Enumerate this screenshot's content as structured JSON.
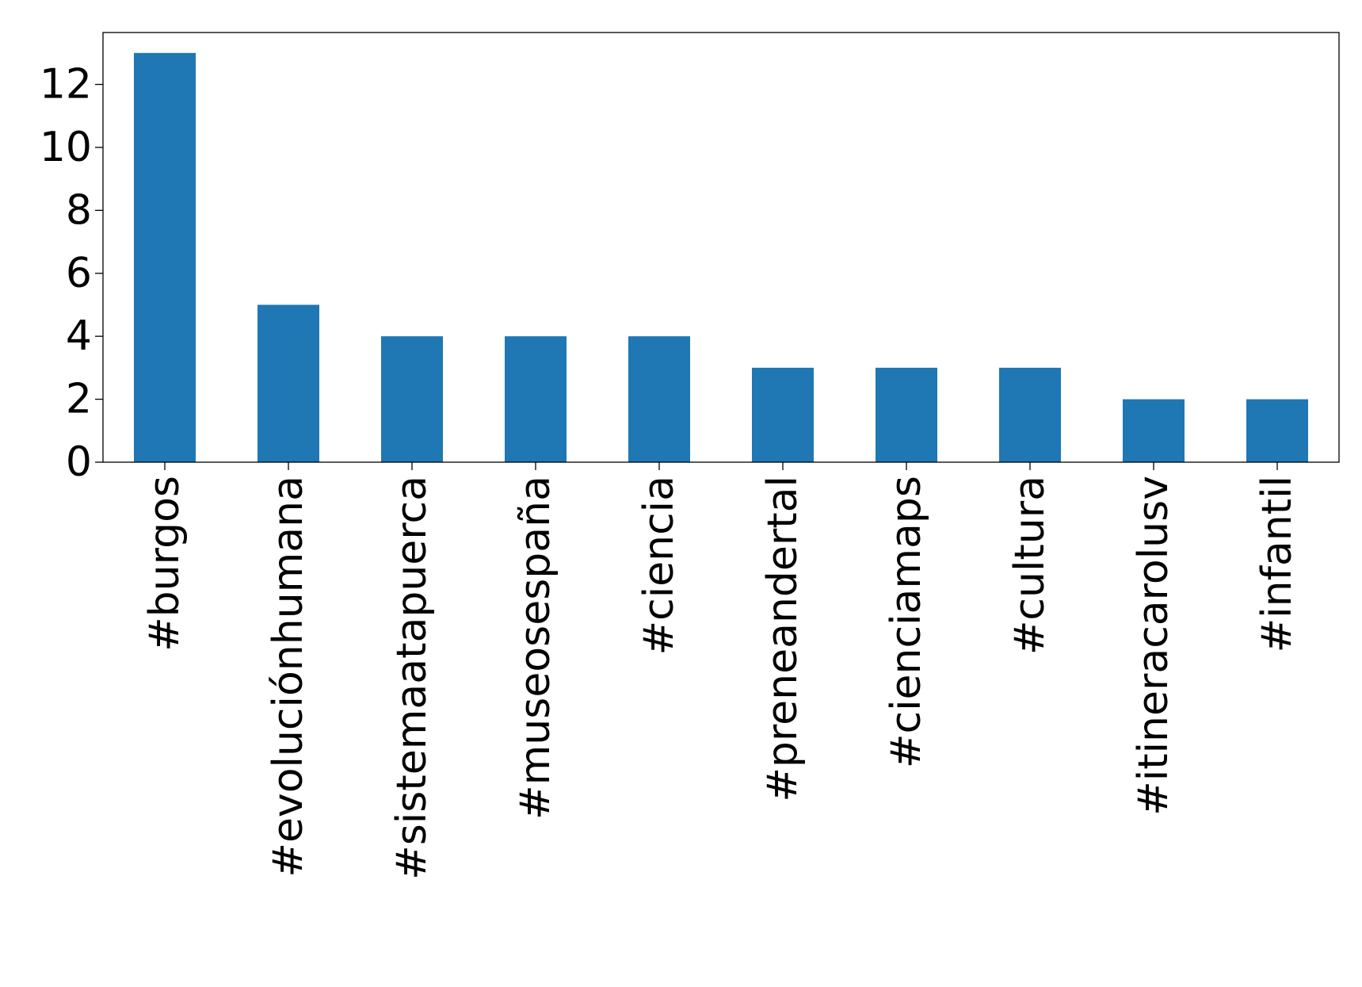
{
  "chart_data": {
    "type": "bar",
    "title": "",
    "xlabel": "",
    "ylabel": "",
    "categories": [
      "#burgos",
      "#evoluciónhumana",
      "#sistemaatapuerca",
      "#museosespaña",
      "#ciencia",
      "#preneandertal",
      "#cienciamaps",
      "#cultura",
      "#itineracarolusv",
      "#infantil"
    ],
    "values": [
      13,
      5,
      4,
      4,
      4,
      3,
      3,
      3,
      2,
      2
    ],
    "ylim": [
      0,
      13.65
    ],
    "yticks": [
      "0",
      "2",
      "4",
      "6",
      "8",
      "10",
      "12"
    ],
    "bar_color": "#1f77b4",
    "grid": false,
    "legend": "none"
  }
}
